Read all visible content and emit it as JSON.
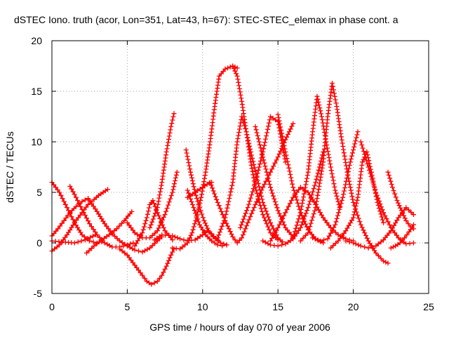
{
  "chart_data": {
    "type": "scatter",
    "title": "dSTEC Iono. truth (acor, Lon=351, Lat=43, h=67): STEC-STEC_elemax in phase cont. a",
    "xlabel": "GPS time / hours of day 070 of year 2006",
    "ylabel": "dSTEC  / TECUs",
    "xlim": [
      0,
      25
    ],
    "ylim": [
      -5,
      20
    ],
    "xticks": [
      0,
      5,
      10,
      15,
      20,
      25
    ],
    "yticks": [
      -5,
      0,
      5,
      10,
      15,
      20
    ],
    "xtick_labels": [
      "0",
      "5",
      "10",
      "15",
      "20",
      "25"
    ],
    "ytick_labels": [
      "-5",
      "0",
      "5",
      "10",
      "15",
      "20"
    ],
    "grid": true,
    "marker": "plus",
    "color": "#ff0000",
    "series": [
      {
        "x": [
          0.0,
          0.5,
          1.0,
          1.5,
          2.0,
          2.5,
          3.0,
          3.3
        ],
        "y": [
          6.0,
          5.0,
          3.5,
          2.0,
          0.8,
          0.2,
          0.0,
          0.1
        ]
      },
      {
        "x": [
          0.0,
          0.5,
          1.0,
          1.5,
          2.0,
          2.4,
          2.8,
          3.1,
          3.4,
          3.7
        ],
        "y": [
          -0.8,
          -0.2,
          0.8,
          2.0,
          3.0,
          3.8,
          4.3,
          4.7,
          5.0,
          5.3
        ]
      },
      {
        "x": [
          0.0,
          0.7,
          1.5,
          2.2,
          2.9
        ],
        "y": [
          0.2,
          0.1,
          0.0,
          0.3,
          0.8
        ]
      },
      {
        "x": [
          1.2,
          1.5,
          2.0,
          2.5,
          3.0,
          3.5,
          4.0,
          4.5,
          5.0,
          5.4
        ],
        "y": [
          5.6,
          4.8,
          3.3,
          1.9,
          0.8,
          0.0,
          -0.4,
          -0.4,
          -0.2,
          0.0
        ]
      },
      {
        "x": [
          0.0,
          0.4,
          0.8,
          1.2,
          1.6,
          2.0,
          2.4
        ],
        "y": [
          0.7,
          1.4,
          2.2,
          3.0,
          3.6,
          4.1,
          4.4
        ]
      },
      {
        "x": [
          2.4,
          3.0,
          3.5,
          4.0,
          4.5,
          5.0,
          5.5,
          6.0,
          6.5,
          7.0,
          7.3
        ],
        "y": [
          4.4,
          3.1,
          1.9,
          0.9,
          0.2,
          -0.3,
          -0.7,
          -0.9,
          -0.5,
          0.2,
          0.6
        ]
      },
      {
        "x": [
          2.3,
          2.8,
          3.3,
          3.8,
          4.3,
          4.8,
          5.3
        ],
        "y": [
          -1.0,
          -0.3,
          0.3,
          0.8,
          1.4,
          2.2,
          3.1
        ]
      },
      {
        "x": [
          5.0,
          5.5,
          6.0,
          6.5,
          7.0,
          7.5,
          8.0,
          8.3
        ],
        "y": [
          2.0,
          1.0,
          0.5,
          0.5,
          1.2,
          2.8,
          5.0,
          7.0
        ]
      },
      {
        "x": [
          4.5,
          5.0,
          5.5,
          6.0,
          6.3,
          6.6,
          7.0,
          7.3,
          7.6,
          7.9,
          8.1
        ],
        "y": [
          -0.6,
          -1.2,
          -2.2,
          -3.2,
          -3.8,
          -4.1,
          -3.8,
          -3.2,
          -2.3,
          -1.2,
          -0.6
        ]
      },
      {
        "x": [
          5.5,
          6.0,
          6.3,
          6.5,
          6.7,
          7.0,
          7.5,
          8.0
        ],
        "y": [
          -0.3,
          1.0,
          2.5,
          3.8,
          4.2,
          3.0,
          1.2,
          0.3
        ]
      },
      {
        "x": [
          6.5,
          7.0,
          7.3,
          7.6,
          7.9,
          8.1
        ],
        "y": [
          1.5,
          3.5,
          6.0,
          9.0,
          11.5,
          12.8
        ]
      },
      {
        "x": [
          6.8,
          7.3,
          8.0,
          8.5,
          9.0,
          9.5,
          10.0,
          10.3,
          10.6,
          10.9,
          11.2,
          11.6
        ],
        "y": [
          0.3,
          0.8,
          0.7,
          0.4,
          0.2,
          0.3,
          0.8,
          1.2,
          0.9,
          0.4,
          0.0,
          -0.2
        ]
      },
      {
        "x": [
          8.0,
          8.5,
          9.0,
          9.3,
          9.6,
          9.9,
          10.2,
          10.5,
          10.8,
          11.1,
          11.5,
          12.0,
          12.3
        ],
        "y": [
          -0.5,
          -0.6,
          0.0,
          1.0,
          2.5,
          4.5,
          7.0,
          10.0,
          13.5,
          16.5,
          17.2,
          17.5,
          17.3
        ]
      },
      {
        "x": [
          9.0,
          9.4,
          9.8,
          10.2,
          10.6,
          11.0,
          11.3,
          11.6
        ],
        "y": [
          5.2,
          3.5,
          1.8,
          0.8,
          0.2,
          -0.2,
          -0.3,
          -0.2
        ]
      },
      {
        "x": [
          8.9,
          9.2,
          9.5,
          9.8,
          10.1,
          10.4,
          10.7,
          11.0
        ],
        "y": [
          9.2,
          7.0,
          5.0,
          3.5,
          2.2,
          1.2,
          0.6,
          0.3
        ]
      },
      {
        "x": [
          9.0,
          9.5,
          10.0,
          10.3,
          10.6
        ],
        "y": [
          4.5,
          5.0,
          5.5,
          5.8,
          6.0
        ]
      },
      {
        "x": [
          10.5,
          11.0,
          11.5,
          12.0,
          12.3,
          12.6,
          13.0,
          13.5,
          14.0,
          14.5,
          15.0,
          15.5,
          16.0
        ],
        "y": [
          6.0,
          4.0,
          2.2,
          0.6,
          0.0,
          0.5,
          2.0,
          3.8,
          5.5,
          7.0,
          8.5,
          10.2,
          11.8
        ]
      },
      {
        "x": [
          11.0,
          11.5,
          12.0,
          12.3,
          12.6,
          12.9,
          13.2,
          13.6,
          14.0,
          14.5,
          15.0,
          15.3
        ],
        "y": [
          0.5,
          2.5,
          6.0,
          10.0,
          12.5,
          11.0,
          9.0,
          6.5,
          4.0,
          2.0,
          0.5,
          0.1
        ]
      },
      {
        "x": [
          12.0,
          12.3,
          12.6,
          12.9,
          13.2,
          13.5,
          14.0,
          14.5,
          15.0
        ],
        "y": [
          17.5,
          16.5,
          14.0,
          11.0,
          8.0,
          5.5,
          2.8,
          1.0,
          0.3
        ]
      },
      {
        "x": [
          12.5,
          13.0,
          13.5,
          14.0,
          14.5,
          15.0,
          15.5
        ],
        "y": [
          1.5,
          3.5,
          6.0,
          9.0,
          12.5,
          12.0,
          8.0
        ]
      },
      {
        "x": [
          13.5,
          14.0,
          14.5,
          15.0,
          15.5,
          16.0
        ],
        "y": [
          11.5,
          8.5,
          5.5,
          3.2,
          1.5,
          0.6
        ]
      },
      {
        "x": [
          15.0,
          15.5,
          16.0,
          16.5,
          17.0,
          17.5,
          18.0
        ],
        "y": [
          12.7,
          9.0,
          5.5,
          3.0,
          1.3,
          0.4,
          0.0
        ]
      },
      {
        "x": [
          14.0,
          14.5,
          15.0,
          15.5,
          16.0,
          16.5,
          17.0,
          17.5,
          18.0
        ],
        "y": [
          0.2,
          -0.2,
          -0.3,
          -0.1,
          0.4,
          1.5,
          3.5,
          6.0,
          9.0
        ]
      },
      {
        "x": [
          16.0,
          16.5,
          17.0,
          17.3,
          17.6,
          17.9,
          18.2,
          18.5,
          18.8,
          19.1
        ],
        "y": [
          0.5,
          3.0,
          7.0,
          11.0,
          14.5,
          12.5,
          10.0,
          7.5,
          5.2,
          3.5
        ]
      },
      {
        "x": [
          16.5,
          17.0,
          17.5,
          18.0,
          18.3,
          18.6,
          18.9,
          19.2,
          19.6,
          20.0,
          20.5,
          21.0,
          21.5,
          22.0,
          22.3
        ],
        "y": [
          0.2,
          1.0,
          3.5,
          8.0,
          12.5,
          15.8,
          13.5,
          10.5,
          7.0,
          4.0,
          1.8,
          0.2,
          -1.0,
          -1.8,
          -2.0
        ]
      },
      {
        "x": [
          17.3,
          17.8,
          18.3,
          18.8,
          19.3,
          19.8,
          20.3
        ],
        "y": [
          0.5,
          0.2,
          0.4,
          1.8,
          4.5,
          8.0,
          11.0
        ]
      },
      {
        "x": [
          18.5,
          19.0,
          19.5,
          20.0,
          20.3,
          20.6,
          20.9,
          21.2,
          21.6,
          22.0
        ],
        "y": [
          -0.5,
          0.2,
          1.2,
          2.5,
          4.5,
          8.0,
          9.0,
          7.0,
          4.0,
          2.0
        ]
      },
      {
        "x": [
          19.5,
          20.0,
          20.5,
          21.0,
          21.5,
          22.0,
          22.5,
          23.0,
          23.5,
          24.0
        ],
        "y": [
          0.2,
          0.0,
          -0.3,
          -0.5,
          -0.3,
          0.3,
          1.2,
          2.5,
          3.5,
          2.8
        ]
      },
      {
        "x": [
          20.5,
          21.0,
          21.5,
          22.0,
          22.5,
          23.0,
          23.5,
          24.0
        ],
        "y": [
          10.0,
          7.5,
          5.0,
          3.0,
          1.5,
          0.5,
          -0.1,
          0.0
        ]
      },
      {
        "x": [
          22.3,
          22.6,
          22.9,
          23.2,
          23.5,
          23.8,
          24.0
        ],
        "y": [
          7.0,
          5.5,
          4.2,
          3.2,
          2.2,
          1.6,
          1.4
        ]
      },
      {
        "x": [
          22.5,
          22.8,
          23.1,
          23.4,
          23.7,
          24.0
        ],
        "y": [
          -0.5,
          -0.3,
          0.0,
          0.5,
          1.1,
          1.8
        ]
      },
      {
        "x": [
          14.5,
          15.0,
          15.5,
          16.0,
          16.5,
          17.0,
          17.5,
          18.0,
          18.5,
          19.0,
          19.5,
          20.0
        ],
        "y": [
          0.2,
          1.5,
          3.0,
          4.5,
          5.5,
          5.0,
          3.8,
          2.5,
          1.5,
          0.8,
          0.4,
          0.2
        ]
      }
    ]
  }
}
